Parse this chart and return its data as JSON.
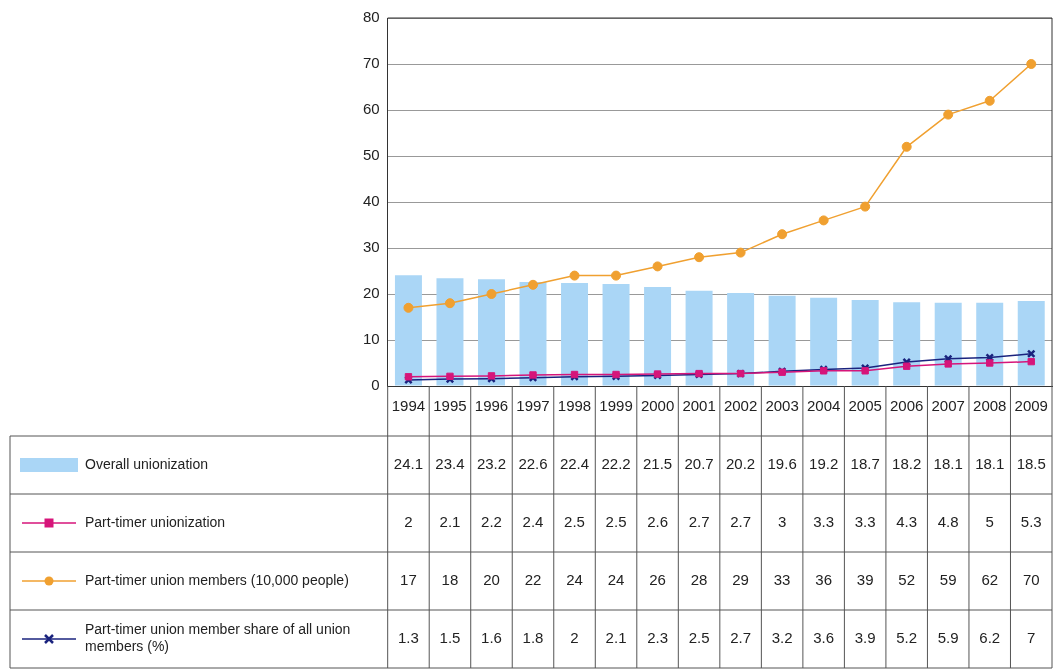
{
  "chart_data": {
    "type": "bar",
    "categories": [
      "1994",
      "1995",
      "1996",
      "1997",
      "1998",
      "1999",
      "2000",
      "2001",
      "2002",
      "2003",
      "2004",
      "2005",
      "2006",
      "2007",
      "2008",
      "2009"
    ],
    "series": [
      {
        "name": "Overall unionization",
        "color": "#aad6f6",
        "values": [
          24.1,
          23.4,
          23.2,
          22.6,
          22.4,
          22.2,
          21.5,
          20.7,
          20.2,
          19.6,
          19.2,
          18.7,
          18.2,
          18.1,
          18.1,
          18.5
        ]
      },
      {
        "name": "Part-timer unionization",
        "type": "line",
        "color": "#d6157a",
        "marker": "square",
        "values": [
          2,
          2.1,
          2.2,
          2.4,
          2.5,
          2.5,
          2.6,
          2.7,
          2.7,
          3,
          3.3,
          3.3,
          4.3,
          4.8,
          5,
          5.3
        ]
      },
      {
        "name": "Part-timer union members (10,000 people)",
        "type": "line",
        "color": "#f0a030",
        "marker": "circle",
        "values": [
          17,
          18,
          20,
          22,
          24,
          24,
          26,
          28,
          29,
          33,
          36,
          39,
          52,
          59,
          62,
          70
        ]
      },
      {
        "name": "Part-timer union member share of all union members (%)",
        "type": "line",
        "color": "#1a237e",
        "marker": "cross",
        "values": [
          1.3,
          1.5,
          1.6,
          1.8,
          2,
          2.1,
          2.3,
          2.5,
          2.7,
          3.2,
          3.6,
          3.9,
          5.2,
          5.9,
          6.2,
          7
        ]
      }
    ],
    "ylim": [
      0,
      80
    ],
    "yticks": [
      0,
      10,
      20,
      30,
      40,
      50,
      60,
      70,
      80
    ],
    "grid": "y",
    "legend": "bottom",
    "data_labels": true
  }
}
